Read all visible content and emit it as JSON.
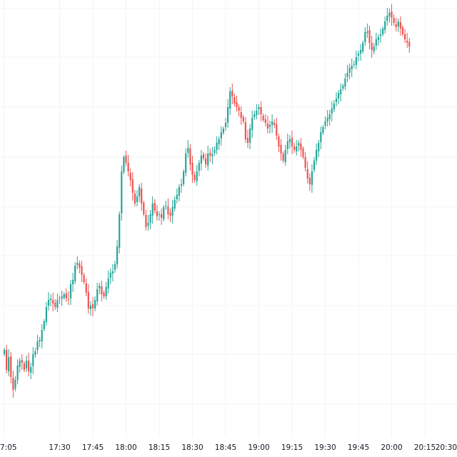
{
  "chart_data": {
    "type": "candlestick",
    "title": "",
    "xlabel": "",
    "ylabel": "",
    "grid": true,
    "colors": {
      "up": "#26a69a",
      "down": "#ef5350",
      "grid": "#f0f3fa",
      "text": "#131722",
      "background": "#ffffff"
    },
    "x_ticks": [
      "7:05",
      "17:30",
      "17:45",
      "18:00",
      "18:15",
      "18:30",
      "18:45",
      "19:00",
      "19:15",
      "19:30",
      "19:45",
      "20:00",
      "20:15",
      "20:30"
    ],
    "x_tick_index": [
      0,
      25,
      40,
      55,
      70,
      85,
      100,
      115,
      130,
      145,
      160,
      175,
      190,
      205
    ],
    "ylim": [
      0,
      640
    ],
    "closes": [
      490,
      518,
      500,
      528,
      546,
      532,
      512,
      505,
      508,
      518,
      505,
      520,
      514,
      496,
      492,
      478,
      476,
      462,
      450,
      430,
      420,
      418,
      425,
      430,
      420,
      418,
      415,
      412,
      418,
      420,
      398,
      392,
      372,
      368,
      375,
      385,
      395,
      410,
      432,
      428,
      432,
      420,
      405,
      400,
      412,
      415,
      402,
      390,
      382,
      380,
      370,
      345,
      300,
      240,
      220,
      228,
      240,
      252,
      270,
      285,
      275,
      262,
      285,
      300,
      318,
      312,
      300,
      285,
      295,
      303,
      300,
      305,
      290,
      288,
      300,
      302,
      290,
      280,
      273,
      262,
      258,
      240,
      215,
      207,
      230,
      245,
      252,
      240,
      228,
      218,
      222,
      230,
      215,
      218,
      216,
      210,
      200,
      195,
      185,
      180,
      172,
      150,
      128,
      135,
      145,
      150,
      155,
      165,
      170,
      195,
      200,
      180,
      165,
      160,
      155,
      150,
      160,
      168,
      172,
      180,
      175,
      170,
      175,
      190,
      205,
      215,
      225,
      210,
      198,
      195,
      205,
      210,
      205,
      200,
      210,
      220,
      235,
      250,
      258,
      240,
      225,
      210,
      200,
      185,
      178,
      170,
      165,
      160,
      152,
      145,
      138,
      130,
      125,
      120,
      110,
      102,
      95,
      92,
      90,
      80,
      75,
      70,
      60,
      45,
      44,
      60,
      70,
      65,
      55,
      52,
      48,
      40,
      30,
      22,
      18,
      25,
      32,
      38,
      30,
      40,
      48,
      55,
      60,
      65
    ]
  }
}
